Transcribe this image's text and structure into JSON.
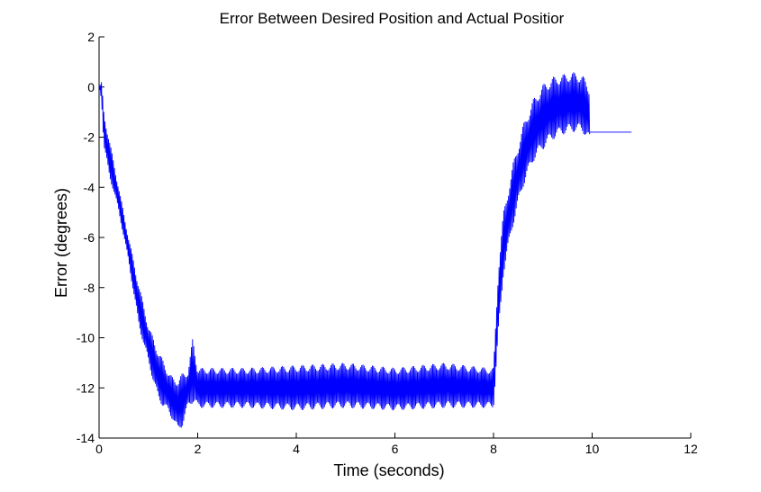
{
  "chart_data": {
    "type": "line",
    "title": "Error Between Desired Position and Actual Positior",
    "xlabel": "Time (seconds)",
    "ylabel": "Error (degrees)",
    "xlim": [
      0,
      12
    ],
    "ylim": [
      -14,
      2
    ],
    "xticks": [
      0,
      2,
      4,
      6,
      8,
      10,
      12
    ],
    "yticks": [
      2,
      0,
      -2,
      -4,
      -6,
      -8,
      -10,
      -12,
      -14
    ],
    "grid": false,
    "line_color": "#0000ff",
    "series": [
      {
        "description_points_envelope": "oscillating error signal; upper/lower envelope over time",
        "x": [
          0.0,
          0.05,
          0.1,
          0.2,
          0.4,
          0.6,
          0.8,
          1.0,
          1.2,
          1.4,
          1.5,
          1.6,
          1.7,
          1.8,
          1.9,
          2.0,
          3.0,
          4.0,
          5.0,
          6.0,
          7.0,
          7.9,
          8.0,
          8.1,
          8.2,
          8.4,
          8.6,
          8.8,
          9.0,
          9.2,
          9.4,
          9.6,
          9.8,
          9.95
        ],
        "upper": [
          0.0,
          0.2,
          -1.0,
          -2.0,
          -4.0,
          -6.0,
          -7.8,
          -9.5,
          -10.5,
          -11.3,
          -11.6,
          -11.6,
          -11.4,
          -11.3,
          -10.0,
          -11.2,
          -11.2,
          -11.1,
          -11.0,
          -11.2,
          -11.0,
          -11.2,
          -11.2,
          -7.0,
          -5.0,
          -3.0,
          -1.5,
          -0.5,
          0.1,
          0.4,
          0.5,
          0.6,
          0.5,
          0.0
        ],
        "lower": [
          0.0,
          -0.5,
          -2.5,
          -3.5,
          -5.0,
          -7.0,
          -9.5,
          -11.0,
          -12.5,
          -13.0,
          -13.3,
          -13.8,
          -13.5,
          -12.8,
          -12.6,
          -12.8,
          -12.8,
          -12.9,
          -12.8,
          -12.9,
          -12.8,
          -12.8,
          -12.8,
          -10.0,
          -7.5,
          -5.5,
          -4.0,
          -3.0,
          -2.5,
          -2.1,
          -1.9,
          -1.8,
          -1.8,
          -2.2
        ],
        "tail": {
          "x": [
            9.95,
            10.0,
            10.8
          ],
          "y": [
            -1.8,
            -1.8,
            -1.8
          ]
        }
      }
    ]
  }
}
